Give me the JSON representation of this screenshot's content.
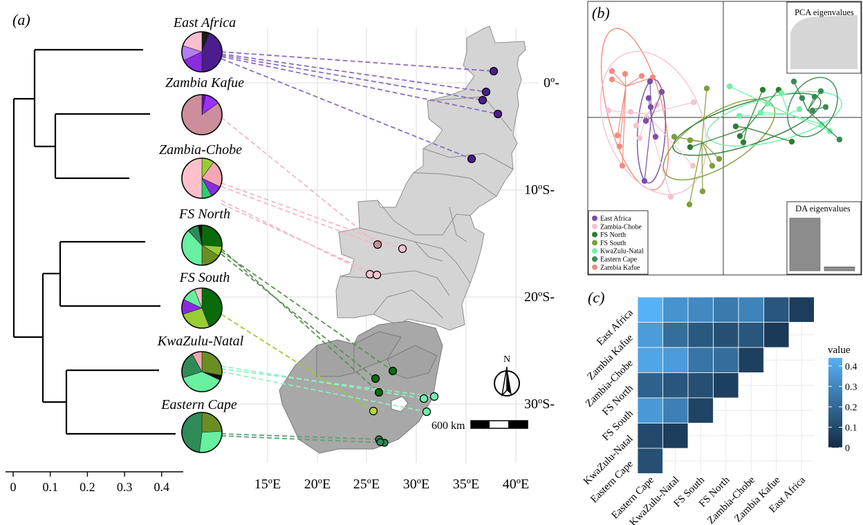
{
  "panels": {
    "a": {
      "label": "(a)",
      "tree_scale": {
        "ticks": [
          0,
          0.1,
          0.2,
          0.3,
          0.4
        ],
        "tick_labels": [
          "0",
          "0.1",
          "0.2",
          "0.3",
          "0.4"
        ]
      },
      "groups": [
        {
          "id": "east_africa",
          "label": "East Africa",
          "pie": [
            {
              "v": 0.06,
              "c": "#1a1a1a"
            },
            {
              "v": 0.44,
              "c": "#4b1d8e"
            },
            {
              "v": 0.18,
              "c": "#8a2be2"
            },
            {
              "v": 0.12,
              "c": "#b57cf2"
            },
            {
              "v": 0.2,
              "c": "#f8bfd0"
            }
          ]
        },
        {
          "id": "zambia_kafue",
          "label": "Zambia Kafue",
          "pie": [
            {
              "v": 0.03,
              "c": "#6a0dad"
            },
            {
              "v": 0.12,
              "c": "#9b30ff"
            },
            {
              "v": 0.85,
              "c": "#cc8e9c"
            }
          ]
        },
        {
          "id": "zambia_chobe",
          "label": "Zambia-Chobe",
          "pie": [
            {
              "v": 0.1,
              "c": "#9acd32"
            },
            {
              "v": 0.22,
              "c": "#f4a6b4"
            },
            {
              "v": 0.1,
              "c": "#8a2be2"
            },
            {
              "v": 0.08,
              "c": "#2ecc71"
            },
            {
              "v": 0.5,
              "c": "#ffc0cb"
            }
          ]
        },
        {
          "id": "fs_north",
          "label": "FS North",
          "pie": [
            {
              "v": 0.26,
              "c": "#0a6b0a"
            },
            {
              "v": 0.08,
              "c": "#9acd32"
            },
            {
              "v": 0.16,
              "c": "#6b8e23"
            },
            {
              "v": 0.38,
              "c": "#66f0a0"
            },
            {
              "v": 0.09,
              "c": "#2e8b57"
            },
            {
              "v": 0.03,
              "c": "#111111"
            }
          ]
        },
        {
          "id": "fs_south",
          "label": "FS South",
          "pie": [
            {
              "v": 0.44,
              "c": "#0a6b0a"
            },
            {
              "v": 0.26,
              "c": "#9acd32"
            },
            {
              "v": 0.12,
              "c": "#8a2be2"
            },
            {
              "v": 0.12,
              "c": "#66f0a0"
            },
            {
              "v": 0.06,
              "c": "#ffc0cb"
            }
          ]
        },
        {
          "id": "kwazulu_natal",
          "label": "KwaZulu-Natal",
          "pie": [
            {
              "v": 0.28,
              "c": "#6b8e23"
            },
            {
              "v": 0.04,
              "c": "#111111"
            },
            {
              "v": 0.38,
              "c": "#66f0a0"
            },
            {
              "v": 0.22,
              "c": "#2e8b57"
            },
            {
              "v": 0.08,
              "c": "#f4a6b4"
            }
          ]
        },
        {
          "id": "eastern_cape",
          "label": "Eastern Cape",
          "pie": [
            {
              "v": 0.24,
              "c": "#6b8e23"
            },
            {
              "v": 0.28,
              "c": "#66f0a0"
            },
            {
              "v": 0.48,
              "c": "#2e8b57"
            }
          ]
        }
      ],
      "map": {
        "lat_labels": [
          "0º-",
          "10ºS-",
          "20ºS-",
          "30ºS-"
        ],
        "lon_labels": [
          "15ºE",
          "20ºE",
          "25ºE",
          "30ºE",
          "35ºE",
          "40ºE"
        ],
        "scale_bar_label": "600 km",
        "north_label": "N"
      }
    },
    "b": {
      "label": "(b)",
      "pca_label": "PCA eigenvalues",
      "da_label": "DA eigenvalues",
      "da_values": [
        0.93,
        0.07
      ],
      "legend": [
        {
          "name": "East Africa",
          "color": "#7b4fa8"
        },
        {
          "name": "Zambia-Chobe",
          "color": "#f6c3cf"
        },
        {
          "name": "FS North",
          "color": "#2e7d32"
        },
        {
          "name": "FS South",
          "color": "#7f9e3a"
        },
        {
          "name": "KwaZulu-Natal",
          "color": "#6ff0a8"
        },
        {
          "name": "Eastern Cape",
          "color": "#3a8a55"
        },
        {
          "name": "Zambia Kafue",
          "color": "#f18d7f"
        }
      ]
    },
    "c": {
      "label": "(c)",
      "row_labels": [
        "East Africa",
        "Zambia Kafue",
        "Zambia-Chobe",
        "FS North",
        "FS South",
        "KwaZulu-Natal",
        "Eastern Cape"
      ],
      "col_labels": [
        "Eastern Cape",
        "KwaZulu-Natal",
        "FS South",
        "FS North",
        "Zambia-Chobe",
        "Zambia Kafue",
        "East Africa"
      ],
      "values": [
        [
          0.44,
          0.34,
          0.31,
          0.26,
          0.29,
          0.14,
          0.06
        ],
        [
          0.37,
          0.22,
          0.15,
          0.12,
          0.14,
          0.05
        ],
        [
          0.4,
          0.37,
          0.24,
          0.22,
          0.07
        ],
        [
          0.18,
          0.14,
          0.12,
          0.07
        ],
        [
          0.36,
          0.28,
          0.08
        ],
        [
          0.1,
          0.06
        ],
        [
          0.12
        ]
      ],
      "legend_title": "value",
      "legend_ticks": [
        0,
        0.1,
        0.2,
        0.3,
        0.4
      ],
      "legend_tick_labels": [
        "0",
        "0.1",
        "0.2",
        "0.3",
        "0.4"
      ],
      "color_low": "#132b43",
      "color_high": "#56b1f7"
    }
  }
}
